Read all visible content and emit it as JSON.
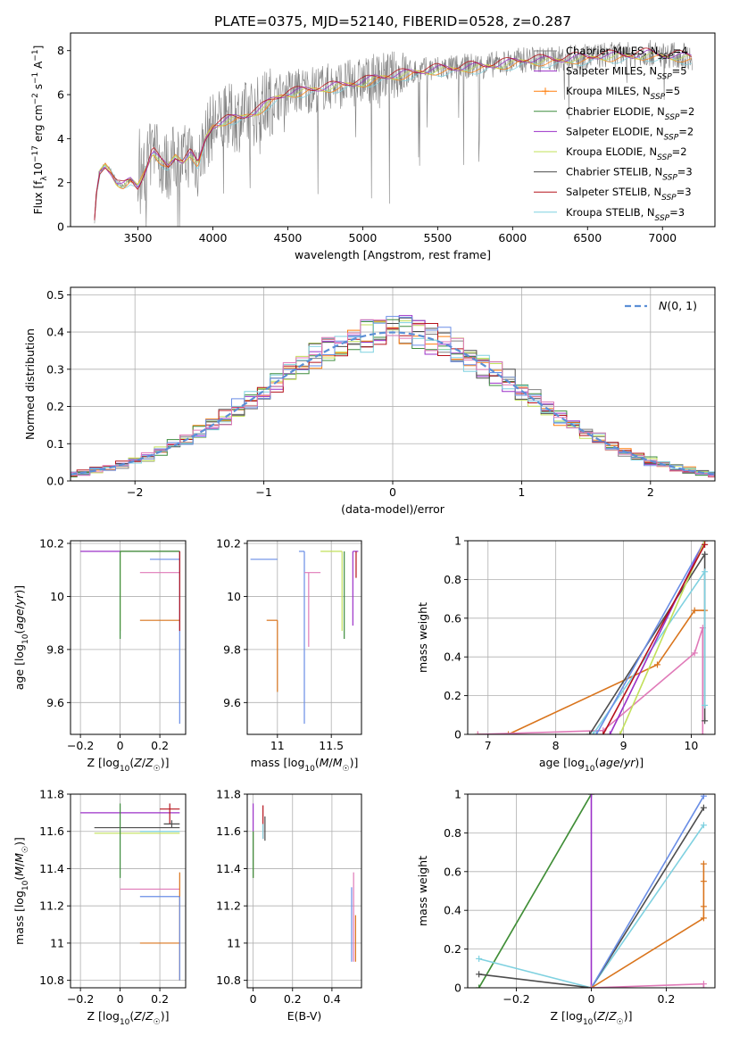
{
  "title": "PLATE=0375, MJD=52140, FIBERID=0528, z=0.287",
  "colors": {
    "grey": "#808080",
    "orange": "#ff7f0e",
    "orange_dark": "#d9741c",
    "green_dark": "#3d8c3d",
    "purple": "#9b30c8",
    "yellowgreen": "#c2e05a",
    "darkgrey": "#4d4d4d",
    "red": "#b5121b",
    "lightblue": "#7fd1e0",
    "blue": "#6a8ee6",
    "pink": "#e07ab8",
    "dash": "#5b8fd6"
  },
  "chart_data": [
    {
      "id": "spectrum",
      "type": "line",
      "xlabel": "wavelength [Angstrom, rest frame]",
      "ylabel": "Flux [f_λ 10^-17 erg cm^-2 s^-1 A^-1]",
      "xlim": [
        3050,
        7350
      ],
      "ylim": [
        0,
        8.8
      ],
      "xticks": [
        3500,
        4000,
        4500,
        5000,
        5500,
        6000,
        6500,
        7000
      ],
      "yticks": [
        0,
        2,
        4,
        6,
        8
      ],
      "grid": false,
      "legend": "top-right",
      "observed_spectrum": {
        "x": [
          3210,
          3240,
          3280,
          3320,
          3360,
          3400,
          3450,
          3500,
          3550,
          3600,
          3650,
          3700,
          3750,
          3800,
          3850,
          3900,
          3950,
          4000,
          4100,
          4200,
          4300,
          4400,
          4500,
          4600,
          4700,
          4800,
          4900,
          5000,
          5100,
          5200,
          5300,
          5400,
          5500,
          5600,
          5700,
          5800,
          5900,
          6000,
          6100,
          6200,
          6300,
          6400,
          6500,
          6600,
          6700,
          6800,
          6900,
          7000,
          7100,
          7200
        ],
        "y": [
          0.3,
          2.4,
          2.8,
          2.5,
          2.0,
          1.9,
          2.1,
          1.8,
          2.6,
          3.5,
          3.0,
          2.7,
          3.2,
          3.0,
          3.4,
          2.8,
          4.0,
          4.6,
          4.9,
          5.0,
          5.3,
          5.8,
          6.1,
          6.2,
          6.3,
          6.4,
          6.5,
          6.6,
          6.8,
          6.9,
          7.0,
          7.1,
          7.2,
          7.2,
          7.3,
          7.3,
          7.4,
          7.5,
          7.6,
          7.6,
          7.6,
          7.7,
          7.7,
          7.8,
          7.8,
          7.8,
          7.9,
          7.8,
          7.8,
          7.7
        ]
      },
      "series": [
        {
          "name": "Chabrier MILES, N_SSP=4",
          "color": "#808080",
          "style": "line"
        },
        {
          "name": "Salpeter MILES, N_SSP=5",
          "color": "#9b30c8",
          "style": "line"
        },
        {
          "name": "Kroupa MILES, N_SSP=5",
          "color": "#ff7f0e",
          "style": "line-plus"
        },
        {
          "name": "Chabrier ELODIE, N_SSP=2",
          "color": "#3d8c3d",
          "style": "line"
        },
        {
          "name": "Salpeter ELODIE, N_SSP=2",
          "color": "#9b30c8",
          "style": "line"
        },
        {
          "name": "Kroupa ELODIE, N_SSP=2",
          "color": "#c2e05a",
          "style": "line"
        },
        {
          "name": "Chabrier STELIB, N_SSP=3",
          "color": "#4d4d4d",
          "style": "line"
        },
        {
          "name": "Salpeter STELIB, N_SSP=3",
          "color": "#b5121b",
          "style": "line"
        },
        {
          "name": "Kroupa STELIB, N_SSP=3",
          "color": "#7fd1e0",
          "style": "line"
        }
      ]
    },
    {
      "id": "residuals",
      "type": "histogram",
      "xlabel": "(data-model)/error",
      "ylabel": "Normed distribution",
      "xlim": [
        -2.5,
        2.5
      ],
      "ylim": [
        0,
        0.52
      ],
      "xticks": [
        -2,
        -1,
        0,
        1,
        2
      ],
      "yticks": [
        0.0,
        0.1,
        0.2,
        0.3,
        0.4,
        0.5
      ],
      "grid": true,
      "legend": "top-right",
      "reference_curve": {
        "name": "N(0, 1)",
        "mean": 0,
        "sigma": 1
      },
      "bin_width": 0.1,
      "series_colors": [
        "#808080",
        "#9b30c8",
        "#ff7f0e",
        "#3d8c3d",
        "#c2e05a",
        "#4d4d4d",
        "#b5121b",
        "#7fd1e0",
        "#6a8ee6",
        "#e07ab8"
      ]
    },
    {
      "id": "age_vs_Z",
      "type": "errorbar",
      "xlabel": "Z [log10(Z/Z☉)]",
      "ylabel": "age [log10(age/yr)]",
      "xlim": [
        -0.25,
        0.33
      ],
      "ylim": [
        9.48,
        10.21
      ],
      "xticks": [
        -0.2,
        0.0,
        0.2
      ],
      "yticks": [
        9.6,
        9.8,
        10.0,
        10.2
      ],
      "grid": true,
      "points": [
        {
          "x": -0.2,
          "y": 10.17,
          "xerr": [
            0.0,
            0.5
          ],
          "yerr": [
            0.0,
            0.0
          ],
          "color": "#9b30c8"
        },
        {
          "x": 0.0,
          "y": 10.17,
          "xerr": [
            0.0,
            0.3
          ],
          "yerr": [
            0.3,
            0.0
          ],
          "color": "#c2e05a"
        },
        {
          "x": 0.0,
          "y": 10.17,
          "xerr": [
            0.0,
            0.3
          ],
          "yerr": [
            0.33,
            0.0
          ],
          "color": "#3d8c3d"
        },
        {
          "x": 0.15,
          "y": 10.14,
          "xerr": [
            0.0,
            0.15
          ],
          "yerr": [
            0.0,
            0.0
          ],
          "color": "#6a8ee6"
        },
        {
          "x": 0.1,
          "y": 10.09,
          "xerr": [
            0.0,
            0.2
          ],
          "yerr": [
            0.0,
            0.0
          ],
          "color": "#e07ab8"
        },
        {
          "x": 0.1,
          "y": 9.91,
          "xerr": [
            0.0,
            0.2
          ],
          "yerr": [
            0.0,
            0.0
          ],
          "color": "#d9741c"
        },
        {
          "x": 0.3,
          "y": 10.17,
          "xerr": [
            0.0,
            0.0
          ],
          "yerr": [
            0.65,
            0.0
          ],
          "color": "#6a8ee6"
        },
        {
          "x": 0.3,
          "y": 10.17,
          "xerr": [
            0.0,
            0.0
          ],
          "yerr": [
            0.3,
            0.0
          ],
          "color": "#b5121b"
        }
      ]
    },
    {
      "id": "age_vs_mass",
      "type": "errorbar",
      "xlabel": "mass [log10(M/M☉)]",
      "ylabel": "",
      "xlim": [
        10.72,
        11.78
      ],
      "ylim": [
        9.48,
        10.21
      ],
      "xticks": [
        11.0,
        11.5
      ],
      "yticks": [
        9.6,
        9.8,
        10.0,
        10.2
      ],
      "grid": true,
      "points": [
        {
          "x": 11.0,
          "y": 9.91,
          "xerr": [
            0.1,
            0.0
          ],
          "yerr": [
            0.27,
            0.0
          ],
          "color": "#d9741c"
        },
        {
          "x": 11.0,
          "y": 10.14,
          "xerr": [
            0.25,
            0.0
          ],
          "yerr": [
            0.0,
            0.0
          ],
          "color": "#6a8ee6"
        },
        {
          "x": 11.25,
          "y": 10.17,
          "xerr": [
            0.05,
            0.0
          ],
          "yerr": [
            0.65,
            0.0
          ],
          "color": "#6a8ee6"
        },
        {
          "x": 11.29,
          "y": 10.09,
          "xerr": [
            0.04,
            0.11
          ],
          "yerr": [
            0.28,
            0.0
          ],
          "color": "#e07ab8"
        },
        {
          "x": 11.6,
          "y": 10.17,
          "xerr": [
            0.2,
            0.0
          ],
          "yerr": [
            0.3,
            0.0
          ],
          "color": "#c2e05a"
        },
        {
          "x": 11.62,
          "y": 10.17,
          "xerr": [
            0.0,
            0.0
          ],
          "yerr": [
            0.33,
            0.0
          ],
          "color": "#3d8c3d"
        },
        {
          "x": 11.7,
          "y": 10.17,
          "xerr": [
            0.0,
            0.05
          ],
          "yerr": [
            0.28,
            0.0
          ],
          "color": "#9b30c8"
        },
        {
          "x": 11.73,
          "y": 10.17,
          "xerr": [
            0.0,
            0.0
          ],
          "yerr": [
            0.1,
            0.0
          ],
          "color": "#b5121b"
        }
      ]
    },
    {
      "id": "weight_vs_age",
      "type": "line",
      "xlabel": "age [log10(age/yr)]",
      "ylabel": "mass weight",
      "xlim": [
        6.7,
        10.35
      ],
      "ylim": [
        0,
        1
      ],
      "xticks": [
        7,
        8,
        9,
        10
      ],
      "yticks": [
        0.0,
        0.2,
        0.4,
        0.6,
        0.8,
        1.0
      ],
      "grid": true,
      "series": [
        {
          "name": "Kroupa MILES",
          "color": "#d9741c",
          "x": [
            6.85,
            7.3,
            9.5,
            10.05,
            10.2
          ],
          "y": [
            0.0,
            0.0,
            0.36,
            0.64,
            0.64
          ]
        },
        {
          "name": "Salpeter MILES",
          "color": "#e07ab8",
          "x": [
            6.85,
            8.7,
            10.05,
            10.17,
            10.17
          ],
          "y": [
            0.0,
            0.02,
            0.42,
            0.55,
            0.0
          ]
        },
        {
          "name": "Chabrier STELIB",
          "color": "#4d4d4d",
          "x": [
            8.5,
            10.2,
            10.2
          ],
          "y": [
            0.0,
            0.93,
            0.07
          ]
        },
        {
          "name": "Kroupa STELIB",
          "color": "#7fd1e0",
          "x": [
            8.55,
            10.2,
            10.2
          ],
          "y": [
            0.0,
            0.84,
            0.15
          ]
        },
        {
          "name": "Chabrier ELODIE",
          "color": "#6a8ee6",
          "x": [
            8.6,
            10.2
          ],
          "y": [
            0.0,
            1.0
          ]
        },
        {
          "name": "Salpeter ELODIE",
          "color": "#9b30c8",
          "x": [
            8.8,
            10.2
          ],
          "y": [
            0.0,
            1.0
          ]
        },
        {
          "name": "Kroupa ELODIE",
          "color": "#c2e05a",
          "x": [
            8.95,
            10.2
          ],
          "y": [
            0.0,
            1.0
          ]
        },
        {
          "name": "Salpeter STELIB",
          "color": "#b5121b",
          "x": [
            8.7,
            10.2
          ],
          "y": [
            0.0,
            0.98
          ]
        }
      ]
    },
    {
      "id": "mass_vs_Z",
      "type": "errorbar",
      "xlabel": "Z [log10(Z/Z☉)]",
      "ylabel": "mass [log10(M/M☉)]",
      "xlim": [
        -0.25,
        0.33
      ],
      "ylim": [
        10.76,
        11.8
      ],
      "xticks": [
        -0.2,
        0.0,
        0.2
      ],
      "yticks": [
        10.8,
        11.0,
        11.2,
        11.4,
        11.6,
        11.8
      ],
      "grid": true,
      "points": [
        {
          "x": -0.2,
          "y": 11.7,
          "xerr": [
            0.0,
            0.5
          ],
          "yerr": [
            0.0,
            0.0
          ],
          "color": "#9b30c8"
        },
        {
          "x": -0.13,
          "y": 11.62,
          "xerr": [
            0.0,
            0.43
          ],
          "yerr": [
            0.0,
            0.0
          ],
          "color": "#4d4d4d"
        },
        {
          "x": -0.13,
          "y": 11.59,
          "xerr": [
            0.0,
            0.43
          ],
          "yerr": [
            0.0,
            0.0
          ],
          "color": "#c2e05a"
        },
        {
          "x": 0.0,
          "y": 11.65,
          "xerr": [
            0.0,
            0.0
          ],
          "yerr": [
            0.3,
            0.1
          ],
          "color": "#3d8c3d"
        },
        {
          "x": 0.25,
          "y": 11.72,
          "xerr": [
            0.05,
            0.05
          ],
          "yerr": [
            0.08,
            0.03
          ],
          "color": "#b5121b"
        },
        {
          "x": 0.26,
          "y": 11.64,
          "xerr": [
            0.04,
            0.04
          ],
          "yerr": [
            0.02,
            0.02
          ],
          "color": "#4d4d4d"
        },
        {
          "x": 0.2,
          "y": 11.6,
          "xerr": [
            0.1,
            0.1
          ],
          "yerr": [
            0.0,
            0.0
          ],
          "color": "#7fd1e0"
        },
        {
          "x": 0.0,
          "y": 11.29,
          "xerr": [
            0.0,
            0.3
          ],
          "yerr": [
            0.0,
            0.0
          ],
          "color": "#e07ab8"
        },
        {
          "x": 0.15,
          "y": 11.25,
          "xerr": [
            0.05,
            0.15
          ],
          "yerr": [
            0.0,
            0.0
          ],
          "color": "#6a8ee6"
        },
        {
          "x": 0.1,
          "y": 11.0,
          "xerr": [
            0.0,
            0.2
          ],
          "yerr": [
            0.0,
            0.0
          ],
          "color": "#d9741c"
        },
        {
          "x": 0.3,
          "y": 11.0,
          "xerr": [
            0.0,
            0.0
          ],
          "yerr": [
            0.2,
            0.38
          ],
          "color": "#d9741c"
        },
        {
          "x": 0.3,
          "y": 11.25,
          "xerr": [
            0.0,
            0.0
          ],
          "yerr": [
            0.45,
            0.0
          ],
          "color": "#6a8ee6"
        }
      ]
    },
    {
      "id": "mass_vs_ebv",
      "type": "errorbar",
      "xlabel": "E(B-V)",
      "ylabel": "",
      "xlim": [
        -0.03,
        0.55
      ],
      "ylim": [
        10.76,
        11.8
      ],
      "xticks": [
        0.0,
        0.2,
        0.4
      ],
      "yticks": [
        10.8,
        11.0,
        11.2,
        11.4,
        11.6,
        11.8
      ],
      "grid": true,
      "points": [
        {
          "x": 0.0,
          "y": 11.6,
          "xerr": [
            0.0,
            0.0
          ],
          "yerr": [
            0.25,
            0.15
          ],
          "color": "#9b30c8"
        },
        {
          "x": 0.0,
          "y": 11.5,
          "xerr": [
            0.0,
            0.0
          ],
          "yerr": [
            0.15,
            0.1
          ],
          "color": "#c2e05a"
        },
        {
          "x": 0.0,
          "y": 11.55,
          "xerr": [
            0.0,
            0.0
          ],
          "yerr": [
            0.2,
            0.05
          ],
          "color": "#3d8c3d"
        },
        {
          "x": 0.05,
          "y": 11.62,
          "xerr": [
            0.0,
            0.0
          ],
          "yerr": [
            0.06,
            0.12
          ],
          "color": "#b5121b"
        },
        {
          "x": 0.06,
          "y": 11.6,
          "xerr": [
            0.0,
            0.0
          ],
          "yerr": [
            0.05,
            0.08
          ],
          "color": "#4d4d4d"
        },
        {
          "x": 0.05,
          "y": 11.6,
          "xerr": [
            0.0,
            0.0
          ],
          "yerr": [
            0.04,
            0.04
          ],
          "color": "#7fd1e0"
        },
        {
          "x": 0.51,
          "y": 11.25,
          "xerr": [
            0.0,
            0.0
          ],
          "yerr": [
            0.35,
            0.13
          ],
          "color": "#e07ab8"
        },
        {
          "x": 0.52,
          "y": 11.15,
          "xerr": [
            0.0,
            0.0
          ],
          "yerr": [
            0.25,
            0.0
          ],
          "color": "#d9741c"
        },
        {
          "x": 0.5,
          "y": 11.1,
          "xerr": [
            0.0,
            0.0
          ],
          "yerr": [
            0.2,
            0.2
          ],
          "color": "#6a8ee6"
        }
      ]
    },
    {
      "id": "weight_vs_Z",
      "type": "line",
      "xlabel": "Z [log10(Z/Z☉)]",
      "ylabel": "mass weight",
      "xlim": [
        -0.33,
        0.33
      ],
      "ylim": [
        0,
        1
      ],
      "xticks": [
        -0.2,
        0.0,
        0.2
      ],
      "yticks": [
        0.0,
        0.2,
        0.4,
        0.6,
        0.8,
        1.0
      ],
      "grid": true,
      "series": [
        {
          "name": "Kroupa ELODIE",
          "color": "#c2e05a",
          "x": [
            -0.3,
            0.0
          ],
          "y": [
            0.0,
            1.0
          ]
        },
        {
          "name": "Chabrier ELODIE",
          "color": "#3d8c3d",
          "x": [
            -0.3,
            0.0
          ],
          "y": [
            0.0,
            1.0
          ]
        },
        {
          "name": "Salpeter ELODIE",
          "color": "#9b30c8",
          "x": [
            0.0,
            0.0
          ],
          "y": [
            0.0,
            1.0
          ]
        },
        {
          "name": "Kroupa STELIB",
          "color": "#7fd1e0",
          "x": [
            -0.3,
            0.0,
            0.3
          ],
          "y": [
            0.15,
            0.0,
            0.84
          ]
        },
        {
          "name": "Chabrier STELIB",
          "color": "#4d4d4d",
          "x": [
            -0.3,
            0.0,
            0.3
          ],
          "y": [
            0.07,
            0.0,
            0.93
          ]
        },
        {
          "name": "Chabrier MILES",
          "color": "#6a8ee6",
          "x": [
            0.0,
            0.3
          ],
          "y": [
            0.0,
            0.99
          ]
        },
        {
          "name": "Kroupa MILES",
          "color": "#d9741c",
          "x": [
            0.0,
            0.3,
            0.3,
            0.3,
            0.3
          ],
          "y": [
            0.0,
            0.36,
            0.42,
            0.55,
            0.64
          ]
        },
        {
          "name": "Salpeter MILES",
          "color": "#e07ab8",
          "x": [
            0.0,
            0.3,
            0.3
          ],
          "y": [
            0.0,
            0.02,
            0.0
          ]
        }
      ]
    }
  ]
}
